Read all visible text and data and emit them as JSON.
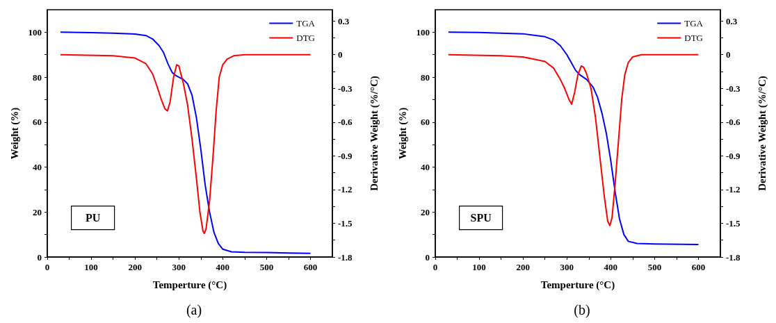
{
  "chart_data": [
    {
      "type": "line",
      "xlabel": "Temperture (°C)",
      "ylabel": "Weight (%)",
      "y2label": "Derivative Weight (%/°C)",
      "annotations": [
        "PU",
        "(a)"
      ],
      "legend": "top right",
      "marker": "none",
      "line_style": "solid",
      "xlim": [
        0,
        650
      ],
      "xticks": [
        0,
        {
          "value": 50,
          "label": null
        },
        100,
        {
          "value": 150,
          "label": null
        },
        200,
        {
          "value": 250,
          "label": null
        },
        300,
        {
          "value": 350,
          "label": null
        },
        400,
        {
          "value": 450,
          "label": null
        },
        500,
        {
          "value": 550,
          "label": null
        },
        600
      ],
      "ylim": [
        0,
        110
      ],
      "yticks": [
        0,
        {
          "value": 10,
          "label": null
        },
        20,
        {
          "value": 30,
          "label": null
        },
        40,
        {
          "value": 50,
          "label": null
        },
        60,
        {
          "value": 70,
          "label": null
        },
        80,
        {
          "value": 90,
          "label": null
        },
        100
      ],
      "y2lim": [
        -1.8,
        0.4
      ],
      "y2ticks": [
        -1.8,
        {
          "value": -1.65,
          "label": null
        },
        -1.5,
        {
          "value": -1.35,
          "label": null
        },
        -1.2,
        {
          "value": -1.05,
          "label": null
        },
        -0.9,
        {
          "value": -0.75,
          "label": null
        },
        -0.6,
        {
          "value": -0.45,
          "label": null
        },
        -0.3,
        {
          "value": -0.15,
          "label": null
        },
        0,
        {
          "value": 0.15,
          "label": null
        },
        0.3
      ],
      "series": [
        {
          "name": "TGA",
          "color": "#0000ff",
          "x": [
            30,
            100,
            150,
            200,
            225,
            240,
            255,
            265,
            275,
            285,
            295,
            310,
            320,
            330,
            340,
            350,
            360,
            370,
            380,
            390,
            400,
            420,
            450,
            500,
            550,
            600
          ],
          "values": [
            100,
            99.8,
            99.6,
            99.2,
            98.5,
            97,
            94,
            91,
            86,
            82,
            80.5,
            79,
            77,
            72,
            62,
            48,
            32,
            20,
            11,
            6,
            3.5,
            2.3,
            2.1,
            2,
            1.8,
            1.6
          ]
        },
        {
          "name": "DTG",
          "color": "#ff0000",
          "axis": "y2",
          "x": [
            30,
            150,
            200,
            225,
            240,
            250,
            260,
            268,
            274,
            280,
            288,
            295,
            300,
            310,
            320,
            330,
            340,
            348,
            355,
            358,
            362,
            370,
            378,
            385,
            392,
            400,
            410,
            425,
            450,
            600
          ],
          "values": [
            0,
            -0.01,
            -0.03,
            -0.08,
            -0.17,
            -0.28,
            -0.4,
            -0.48,
            -0.5,
            -0.42,
            -0.2,
            -0.09,
            -0.1,
            -0.25,
            -0.45,
            -0.75,
            -1.1,
            -1.4,
            -1.57,
            -1.59,
            -1.55,
            -1.3,
            -0.9,
            -0.5,
            -0.2,
            -0.09,
            -0.04,
            -0.01,
            0,
            0
          ]
        }
      ]
    },
    {
      "type": "line",
      "xlabel": "Temperture (°C)",
      "ylabel": "Weight (%)",
      "y2label": "Derivative Weight (%/°C)",
      "annotations": [
        "SPU",
        "(b)"
      ],
      "legend": "top right",
      "marker": "none",
      "line_style": "solid",
      "xlim": [
        0,
        650
      ],
      "xticks": [
        0,
        {
          "value": 50,
          "label": null
        },
        100,
        {
          "value": 150,
          "label": null
        },
        200,
        {
          "value": 250,
          "label": null
        },
        300,
        {
          "value": 350,
          "label": null
        },
        400,
        {
          "value": 450,
          "label": null
        },
        500,
        {
          "value": 550,
          "label": null
        },
        600
      ],
      "ylim": [
        0,
        110
      ],
      "yticks": [
        0,
        {
          "value": 10,
          "label": null
        },
        20,
        {
          "value": 30,
          "label": null
        },
        40,
        {
          "value": 50,
          "label": null
        },
        60,
        {
          "value": 70,
          "label": null
        },
        80,
        {
          "value": 90,
          "label": null
        },
        100
      ],
      "y2lim": [
        -1.8,
        0.4
      ],
      "y2ticks": [
        -1.8,
        {
          "value": -1.65,
          "label": null
        },
        -1.5,
        {
          "value": -1.35,
          "label": null
        },
        -1.2,
        {
          "value": -1.05,
          "label": null
        },
        -0.9,
        {
          "value": -0.75,
          "label": null
        },
        -0.6,
        {
          "value": -0.45,
          "label": null
        },
        -0.3,
        {
          "value": -0.15,
          "label": null
        },
        0,
        {
          "value": 0.15,
          "label": null
        },
        0.3
      ],
      "series": [
        {
          "name": "TGA",
          "color": "#0000ff",
          "x": [
            30,
            100,
            200,
            250,
            270,
            285,
            300,
            310,
            320,
            330,
            345,
            360,
            370,
            380,
            390,
            400,
            410,
            420,
            430,
            440,
            460,
            500,
            600
          ],
          "values": [
            100,
            99.9,
            99.3,
            98,
            96.5,
            94,
            90,
            86.5,
            83,
            81,
            79,
            75.5,
            71,
            64,
            55,
            43,
            29,
            17,
            10,
            7,
            6,
            5.8,
            5.6
          ]
        },
        {
          "name": "DTG",
          "color": "#ff0000",
          "axis": "y2",
          "x": [
            30,
            150,
            200,
            250,
            270,
            285,
            295,
            305,
            311,
            318,
            325,
            333,
            338,
            345,
            355,
            365,
            375,
            385,
            393,
            398,
            403,
            410,
            418,
            425,
            432,
            440,
            450,
            470,
            600
          ],
          "values": [
            0,
            -0.01,
            -0.02,
            -0.06,
            -0.12,
            -0.22,
            -0.3,
            -0.4,
            -0.44,
            -0.33,
            -0.18,
            -0.1,
            -0.11,
            -0.17,
            -0.3,
            -0.55,
            -0.9,
            -1.25,
            -1.48,
            -1.52,
            -1.45,
            -1.15,
            -0.75,
            -0.4,
            -0.18,
            -0.07,
            -0.02,
            0,
            0
          ]
        }
      ]
    }
  ]
}
